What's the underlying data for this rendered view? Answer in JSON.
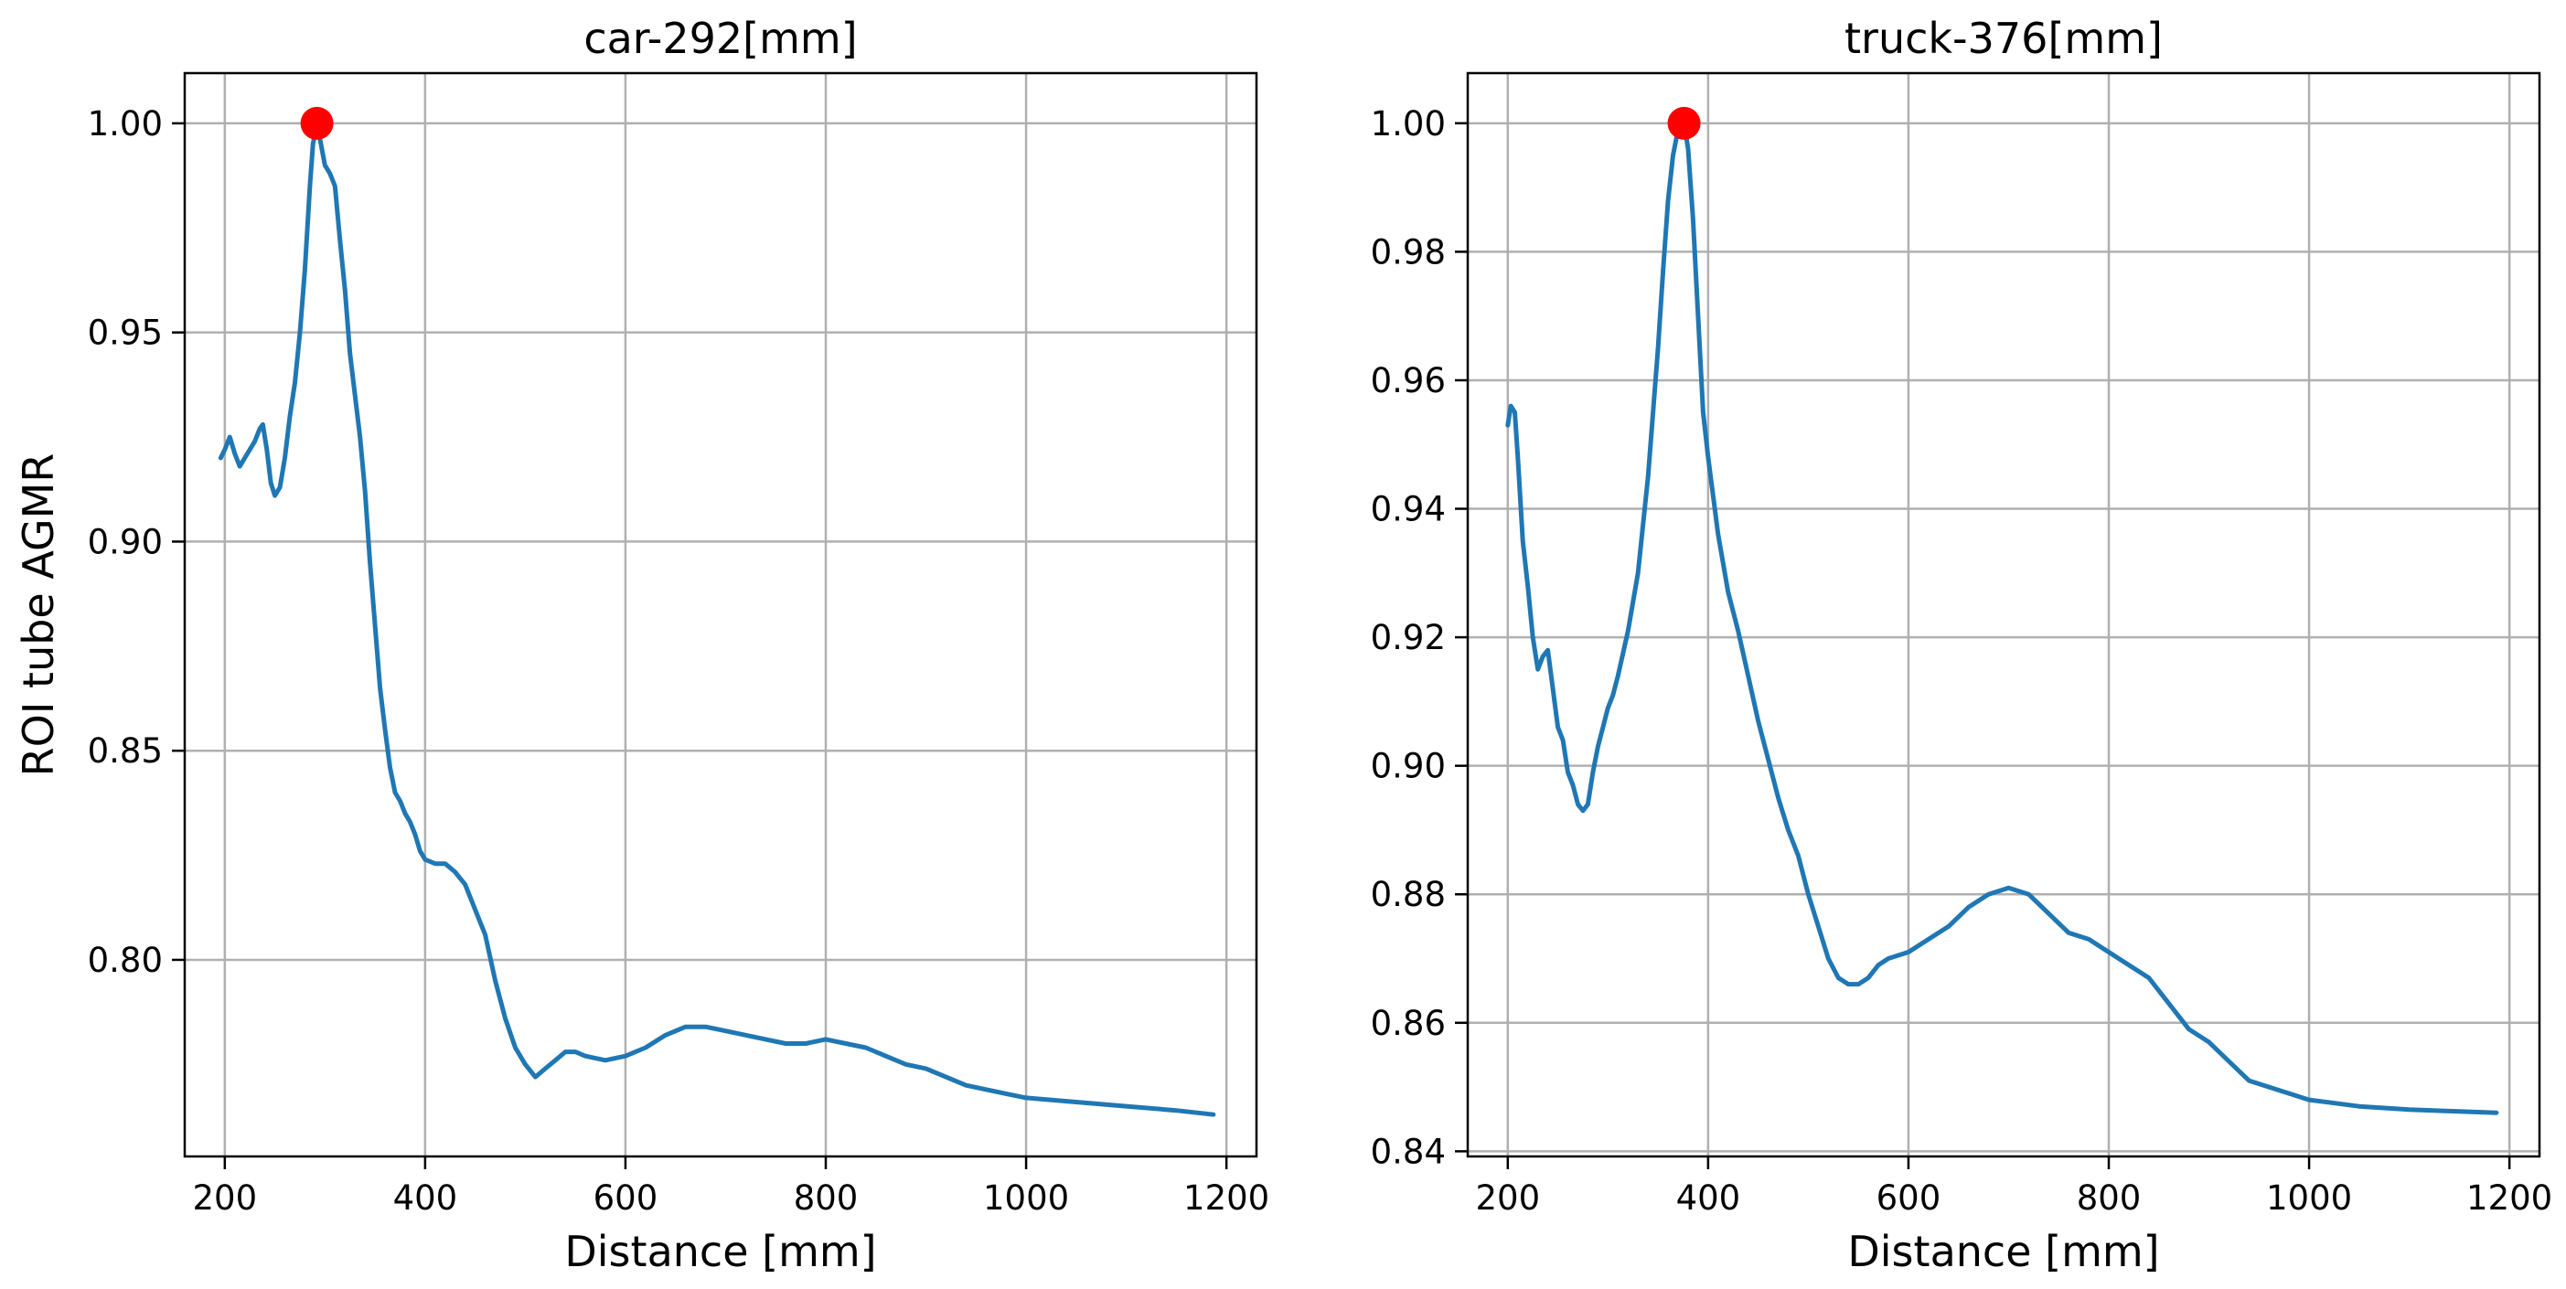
{
  "chart_data": [
    {
      "type": "line",
      "title": "car-292[mm]",
      "xlabel": "Distance [mm]",
      "ylabel": "ROI tube AGMR",
      "xlim": [
        160,
        1230
      ],
      "ylim": [
        0.753,
        1.012
      ],
      "xticks": [
        200,
        400,
        600,
        800,
        1000,
        1200
      ],
      "yticks": [
        0.8,
        0.85,
        0.9,
        0.95,
        1.0
      ],
      "xtick_labels": [
        "200",
        "400",
        "600",
        "800",
        "1000",
        "1200"
      ],
      "ytick_labels": [
        "0.80",
        "0.85",
        "0.90",
        "0.95",
        "1.00"
      ],
      "grid": true,
      "line_color": "#1f77b4",
      "marker_color": "#ff0000",
      "peak": {
        "x": 292,
        "y": 1.0
      },
      "series": [
        {
          "x": [
            196,
            200,
            205,
            210,
            215,
            220,
            225,
            230,
            235,
            238,
            242,
            246,
            250,
            255,
            260,
            265,
            270,
            275,
            280,
            285,
            288,
            292,
            296,
            300,
            305,
            310,
            315,
            320,
            325,
            330,
            335,
            340,
            345,
            350,
            355,
            360,
            365,
            370,
            375,
            380,
            385,
            390,
            395,
            400,
            410,
            420,
            430,
            440,
            450,
            460,
            470,
            480,
            490,
            500,
            510,
            520,
            530,
            540,
            550,
            560,
            580,
            600,
            620,
            640,
            660,
            680,
            700,
            720,
            740,
            760,
            780,
            800,
            820,
            840,
            860,
            880,
            900,
            920,
            940,
            960,
            980,
            1000,
            1050,
            1100,
            1150,
            1187
          ],
          "y": [
            0.92,
            0.922,
            0.925,
            0.921,
            0.918,
            0.92,
            0.922,
            0.924,
            0.927,
            0.928,
            0.922,
            0.914,
            0.911,
            0.913,
            0.92,
            0.93,
            0.938,
            0.95,
            0.965,
            0.985,
            0.995,
            1.0,
            0.995,
            0.99,
            0.988,
            0.985,
            0.972,
            0.96,
            0.945,
            0.935,
            0.925,
            0.912,
            0.895,
            0.88,
            0.865,
            0.855,
            0.846,
            0.84,
            0.838,
            0.835,
            0.833,
            0.83,
            0.826,
            0.824,
            0.823,
            0.823,
            0.821,
            0.818,
            0.812,
            0.806,
            0.795,
            0.786,
            0.779,
            0.775,
            0.772,
            0.774,
            0.776,
            0.778,
            0.778,
            0.777,
            0.776,
            0.777,
            0.779,
            0.782,
            0.784,
            0.784,
            0.783,
            0.782,
            0.781,
            0.78,
            0.78,
            0.781,
            0.78,
            0.779,
            0.777,
            0.775,
            0.774,
            0.772,
            0.77,
            0.769,
            0.768,
            0.767,
            0.766,
            0.765,
            0.764,
            0.763
          ]
        }
      ]
    },
    {
      "type": "line",
      "title": "truck-376[mm]",
      "xlabel": "Distance [mm]",
      "ylabel": "",
      "xlim": [
        160,
        1230
      ],
      "ylim": [
        0.8392,
        1.0078
      ],
      "xticks": [
        200,
        400,
        600,
        800,
        1000,
        1200
      ],
      "yticks": [
        0.84,
        0.86,
        0.88,
        0.9,
        0.92,
        0.94,
        0.96,
        0.98,
        1.0
      ],
      "xtick_labels": [
        "200",
        "400",
        "600",
        "800",
        "1000",
        "1200"
      ],
      "ytick_labels": [
        "0.84",
        "0.86",
        "0.88",
        "0.90",
        "0.92",
        "0.94",
        "0.96",
        "0.98",
        "1.00"
      ],
      "grid": true,
      "line_color": "#1f77b4",
      "marker_color": "#ff0000",
      "peak": {
        "x": 376,
        "y": 1.0
      },
      "series": [
        {
          "x": [
            200,
            203,
            207,
            210,
            215,
            220,
            225,
            230,
            235,
            240,
            245,
            250,
            255,
            260,
            265,
            270,
            275,
            280,
            285,
            290,
            295,
            300,
            305,
            310,
            320,
            330,
            340,
            350,
            355,
            360,
            365,
            370,
            374,
            376,
            380,
            385,
            390,
            395,
            400,
            410,
            420,
            430,
            440,
            450,
            460,
            470,
            480,
            490,
            500,
            510,
            520,
            530,
            540,
            550,
            560,
            570,
            580,
            600,
            620,
            640,
            660,
            680,
            700,
            720,
            740,
            760,
            780,
            800,
            820,
            840,
            860,
            880,
            900,
            920,
            940,
            960,
            980,
            1000,
            1050,
            1100,
            1150,
            1187
          ],
          "y": [
            0.953,
            0.956,
            0.955,
            0.948,
            0.935,
            0.928,
            0.92,
            0.915,
            0.917,
            0.918,
            0.912,
            0.906,
            0.904,
            0.899,
            0.897,
            0.894,
            0.893,
            0.894,
            0.899,
            0.903,
            0.906,
            0.909,
            0.911,
            0.914,
            0.921,
            0.93,
            0.945,
            0.965,
            0.977,
            0.988,
            0.995,
            0.999,
            1.0,
            1.0,
            0.996,
            0.985,
            0.97,
            0.955,
            0.948,
            0.936,
            0.927,
            0.921,
            0.914,
            0.907,
            0.901,
            0.895,
            0.89,
            0.886,
            0.88,
            0.875,
            0.87,
            0.867,
            0.866,
            0.866,
            0.867,
            0.869,
            0.87,
            0.871,
            0.873,
            0.875,
            0.878,
            0.88,
            0.881,
            0.88,
            0.877,
            0.874,
            0.873,
            0.871,
            0.869,
            0.867,
            0.863,
            0.859,
            0.857,
            0.854,
            0.851,
            0.85,
            0.849,
            0.848,
            0.847,
            0.8465,
            0.8462,
            0.846
          ]
        }
      ]
    }
  ]
}
